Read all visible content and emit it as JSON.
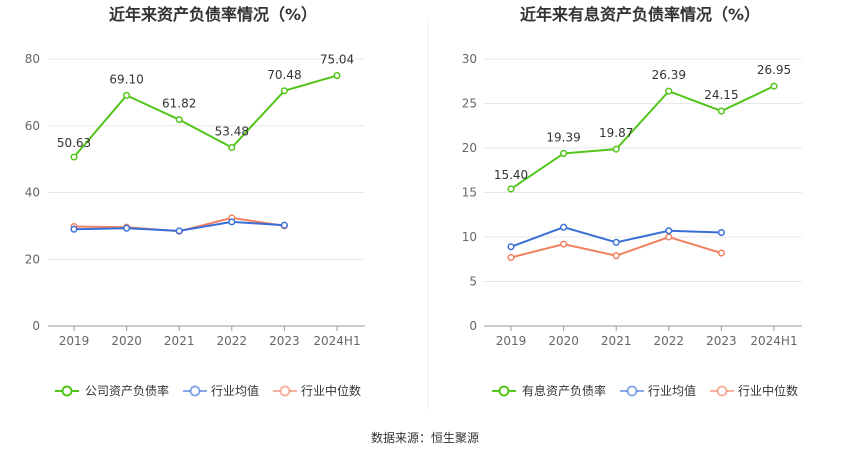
{
  "footer": "数据来源：恒生聚源",
  "chart_data": [
    {
      "type": "line",
      "title": "近年来资产负债率情况（%）",
      "categories": [
        "2019",
        "2020",
        "2021",
        "2022",
        "2023",
        "2024H1"
      ],
      "ylim": [
        0,
        80
      ],
      "yticks": [
        0,
        20,
        40,
        60,
        80
      ],
      "grid": true,
      "legend_position": "bottom",
      "series": [
        {
          "name": "公司资产负债率",
          "color": "#52c41a",
          "labeled": true,
          "values": [
            50.63,
            69.1,
            61.82,
            53.48,
            70.48,
            75.04
          ],
          "labels": [
            "50.63",
            "69.10",
            "61.82",
            "53.48",
            "70.48",
            "75.04"
          ]
        },
        {
          "name": "行业均值",
          "color": "#3a6fd8",
          "labeled": false,
          "values": [
            29.0,
            29.3,
            28.5,
            31.2,
            30.2,
            null
          ]
        },
        {
          "name": "行业中位数",
          "color": "#f08060",
          "labeled": false,
          "values": [
            29.8,
            29.6,
            28.4,
            32.4,
            30.0,
            null
          ]
        }
      ]
    },
    {
      "type": "line",
      "title": "近年来有息资产负债率情况（%）",
      "categories": [
        "2019",
        "2020",
        "2021",
        "2022",
        "2023",
        "2024H1"
      ],
      "ylim": [
        0,
        30
      ],
      "yticks": [
        0,
        5,
        10,
        15,
        20,
        25,
        30
      ],
      "grid": true,
      "legend_position": "bottom",
      "series": [
        {
          "name": "有息资产负债率",
          "color": "#52c41a",
          "labeled": true,
          "values": [
            15.4,
            19.39,
            19.87,
            26.39,
            24.15,
            26.95
          ],
          "labels": [
            "15.40",
            "19.39",
            "19.87",
            "26.39",
            "24.15",
            "26.95"
          ]
        },
        {
          "name": "行业均值",
          "color": "#3a6fd8",
          "labeled": false,
          "values": [
            8.9,
            11.1,
            9.4,
            10.7,
            10.5,
            null
          ]
        },
        {
          "name": "行业中位数",
          "color": "#f08060",
          "labeled": false,
          "values": [
            7.7,
            9.2,
            7.9,
            10.0,
            8.2,
            null
          ]
        }
      ]
    }
  ]
}
